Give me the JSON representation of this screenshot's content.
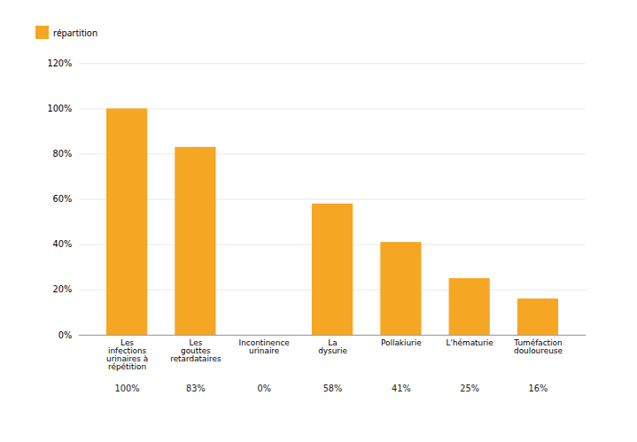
{
  "chart_data": {
    "type": "bar",
    "categories": [
      "Les\ninfections\nurinaires à\nrépétition",
      "Les\ngouttes\nretardataires",
      "Incontinence\nurinaire",
      "La\ndysurie",
      "Pollakiurie",
      "L'hématurie",
      "Tuméfaction\ndouloureuse"
    ],
    "series": [
      {
        "name": "répartition",
        "color": "#F5A623",
        "values": [
          1.0,
          0.83,
          0.0,
          0.58,
          0.41,
          0.25,
          0.16
        ],
        "value_labels": [
          "100%",
          "83%",
          "0%",
          "58%",
          "41%",
          "25%",
          "16%"
        ]
      }
    ],
    "ylim": [
      0,
      1.2
    ],
    "yticks": [
      {
        "value": 0.0,
        "label": "0%"
      },
      {
        "value": 0.2,
        "label": "20%"
      },
      {
        "value": 0.4,
        "label": "40%"
      },
      {
        "value": 0.6,
        "label": "60%"
      },
      {
        "value": 0.8,
        "label": "80%"
      },
      {
        "value": 1.0,
        "label": "100%"
      },
      {
        "value": 1.2,
        "label": "120%"
      }
    ],
    "grid": true,
    "data_labels": true
  }
}
